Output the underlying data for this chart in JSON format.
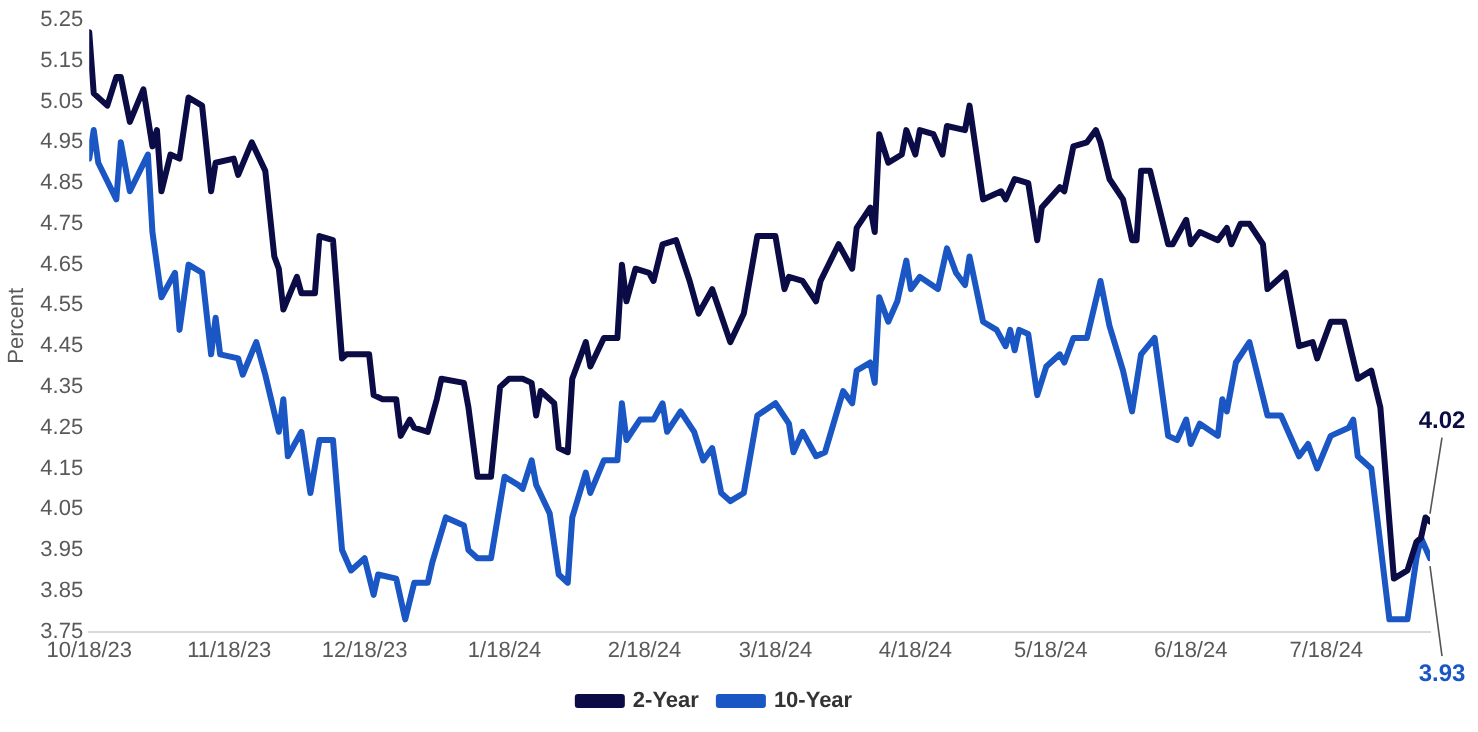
{
  "chart_data": {
    "type": "line",
    "ylabel": "Percent",
    "xlim": [
      "2023-10-18",
      "2024-08-10"
    ],
    "ylim": [
      3.75,
      5.25
    ],
    "xticks": [
      {
        "value": "2023-10-18",
        "label": "10/18/23"
      },
      {
        "value": "2023-11-18",
        "label": "11/18/23"
      },
      {
        "value": "2023-12-18",
        "label": "12/18/23"
      },
      {
        "value": "2024-01-18",
        "label": "1/18/24"
      },
      {
        "value": "2024-02-18",
        "label": "2/18/24"
      },
      {
        "value": "2024-03-18",
        "label": "3/18/24"
      },
      {
        "value": "2024-04-18",
        "label": "4/18/24"
      },
      {
        "value": "2024-05-18",
        "label": "5/18/24"
      },
      {
        "value": "2024-06-18",
        "label": "6/18/24"
      },
      {
        "value": "2024-07-18",
        "label": "7/18/24"
      }
    ],
    "yticks": [
      {
        "value": 3.75,
        "label": "3.75"
      },
      {
        "value": 3.85,
        "label": "3.85"
      },
      {
        "value": 3.95,
        "label": "3.95"
      },
      {
        "value": 4.05,
        "label": "4.05"
      },
      {
        "value": 4.15,
        "label": "4.15"
      },
      {
        "value": 4.25,
        "label": "4.25"
      },
      {
        "value": 4.35,
        "label": "4.35"
      },
      {
        "value": 4.45,
        "label": "4.45"
      },
      {
        "value": 4.55,
        "label": "4.55"
      },
      {
        "value": 4.65,
        "label": "4.65"
      },
      {
        "value": 4.75,
        "label": "4.75"
      },
      {
        "value": 4.85,
        "label": "4.85"
      },
      {
        "value": 4.95,
        "label": "4.95"
      },
      {
        "value": 5.05,
        "label": "5.05"
      },
      {
        "value": 5.15,
        "label": "5.15"
      },
      {
        "value": 5.25,
        "label": "5.25"
      }
    ],
    "grid": false,
    "legend": "bottom",
    "marker": "none",
    "line_style": "solid",
    "series": [
      {
        "name": "2-Year",
        "color": "#0b0b45",
        "x": [
          "2023-10-18",
          "2023-10-19",
          "2023-10-22",
          "2023-10-24",
          "2023-10-25",
          "2023-10-27",
          "2023-10-30",
          "2023-11-01",
          "2023-11-02",
          "2023-11-03",
          "2023-11-05",
          "2023-11-07",
          "2023-11-09",
          "2023-11-12",
          "2023-11-14",
          "2023-11-15",
          "2023-11-19",
          "2023-11-20",
          "2023-11-23",
          "2023-11-26",
          "2023-11-28",
          "2023-11-29",
          "2023-11-30",
          "2023-12-03",
          "2023-12-04",
          "2023-12-07",
          "2023-12-08",
          "2023-12-11",
          "2023-12-13",
          "2023-12-14",
          "2023-12-19",
          "2023-12-20",
          "2023-12-22",
          "2023-12-25",
          "2023-12-26",
          "2023-12-28",
          "2023-12-29",
          "2024-01-01",
          "2024-01-03",
          "2024-01-04",
          "2024-01-09",
          "2024-01-10",
          "2024-01-12",
          "2024-01-15",
          "2024-01-17",
          "2024-01-19",
          "2024-01-22",
          "2024-01-24",
          "2024-01-25",
          "2024-01-26",
          "2024-01-29",
          "2024-01-30",
          "2024-02-01",
          "2024-02-02",
          "2024-02-05",
          "2024-02-06",
          "2024-02-09",
          "2024-02-12",
          "2024-02-13",
          "2024-02-14",
          "2024-02-16",
          "2024-02-19",
          "2024-02-20",
          "2024-02-22",
          "2024-02-25",
          "2024-02-28",
          "2024-03-01",
          "2024-03-04",
          "2024-03-08",
          "2024-03-11",
          "2024-03-14",
          "2024-03-18",
          "2024-03-20",
          "2024-03-21",
          "2024-03-24",
          "2024-03-27",
          "2024-03-28",
          "2024-04-01",
          "2024-04-04",
          "2024-04-05",
          "2024-04-08",
          "2024-04-09",
          "2024-04-10",
          "2024-04-12",
          "2024-04-15",
          "2024-04-16",
          "2024-04-18",
          "2024-04-19",
          "2024-04-22",
          "2024-04-24",
          "2024-04-25",
          "2024-04-29",
          "2024-04-30",
          "2024-05-03",
          "2024-05-07",
          "2024-05-08",
          "2024-05-10",
          "2024-05-13",
          "2024-05-15",
          "2024-05-16",
          "2024-05-20",
          "2024-05-21",
          "2024-05-23",
          "2024-05-26",
          "2024-05-28",
          "2024-05-29",
          "2024-05-31",
          "2024-06-03",
          "2024-06-05",
          "2024-06-06",
          "2024-06-07",
          "2024-06-09",
          "2024-06-13",
          "2024-06-14",
          "2024-06-17",
          "2024-06-18",
          "2024-06-20",
          "2024-06-24",
          "2024-06-26",
          "2024-06-27",
          "2024-06-29",
          "2024-07-01",
          "2024-07-04",
          "2024-07-05",
          "2024-07-09",
          "2024-07-12",
          "2024-07-15",
          "2024-07-16",
          "2024-07-19",
          "2024-07-22",
          "2024-07-25",
          "2024-07-28",
          "2024-07-30",
          "2024-08-02",
          "2024-08-05",
          "2024-08-07",
          "2024-08-08",
          "2024-08-09",
          "2024-08-10"
        ],
        "values": [
          5.22,
          5.07,
          5.04,
          5.11,
          5.11,
          5.0,
          5.08,
          4.94,
          4.98,
          4.83,
          4.92,
          4.91,
          5.06,
          5.04,
          4.83,
          4.9,
          4.91,
          4.87,
          4.95,
          4.88,
          4.67,
          4.64,
          4.54,
          4.62,
          4.58,
          4.58,
          4.72,
          4.71,
          4.42,
          4.43,
          4.43,
          4.33,
          4.32,
          4.32,
          4.23,
          4.27,
          4.25,
          4.24,
          4.32,
          4.37,
          4.36,
          4.3,
          4.13,
          4.13,
          4.35,
          4.37,
          4.37,
          4.36,
          4.28,
          4.34,
          4.31,
          4.2,
          4.19,
          4.37,
          4.46,
          4.4,
          4.47,
          4.47,
          4.65,
          4.56,
          4.64,
          4.63,
          4.61,
          4.7,
          4.71,
          4.61,
          4.53,
          4.59,
          4.46,
          4.53,
          4.72,
          4.72,
          4.59,
          4.62,
          4.61,
          4.56,
          4.61,
          4.7,
          4.64,
          4.74,
          4.79,
          4.73,
          4.97,
          4.9,
          4.92,
          4.98,
          4.92,
          4.98,
          4.97,
          4.92,
          4.99,
          4.98,
          5.04,
          4.81,
          4.83,
          4.81,
          4.86,
          4.85,
          4.71,
          4.79,
          4.84,
          4.83,
          4.94,
          4.95,
          4.98,
          4.95,
          4.86,
          4.81,
          4.71,
          4.71,
          4.88,
          4.88,
          4.7,
          4.7,
          4.76,
          4.7,
          4.73,
          4.71,
          4.74,
          4.7,
          4.75,
          4.75,
          4.7,
          4.59,
          4.63,
          4.45,
          4.46,
          4.42,
          4.51,
          4.51,
          4.37,
          4.39,
          4.3,
          3.88,
          3.9,
          3.97,
          3.98,
          4.03,
          4.02
        ]
      },
      {
        "name": "10-Year",
        "color": "#1a56c4",
        "x": [
          "2023-10-18",
          "2023-10-19",
          "2023-10-20",
          "2023-10-24",
          "2023-10-25",
          "2023-10-27",
          "2023-10-31",
          "2023-11-01",
          "2023-11-03",
          "2023-11-06",
          "2023-11-07",
          "2023-11-09",
          "2023-11-12",
          "2023-11-14",
          "2023-11-15",
          "2023-11-16",
          "2023-11-20",
          "2023-11-21",
          "2023-11-24",
          "2023-11-26",
          "2023-11-29",
          "2023-11-30",
          "2023-12-01",
          "2023-12-04",
          "2023-12-06",
          "2023-12-08",
          "2023-12-11",
          "2023-12-13",
          "2023-12-15",
          "2023-12-18",
          "2023-12-20",
          "2023-12-21",
          "2023-12-25",
          "2023-12-27",
          "2023-12-29",
          "2024-01-01",
          "2024-01-02",
          "2024-01-05",
          "2024-01-09",
          "2024-01-10",
          "2024-01-12",
          "2024-01-15",
          "2024-01-18",
          "2024-01-21",
          "2024-01-22",
          "2024-01-24",
          "2024-01-25",
          "2024-01-28",
          "2024-01-30",
          "2024-02-01",
          "2024-02-02",
          "2024-02-05",
          "2024-02-06",
          "2024-02-09",
          "2024-02-12",
          "2024-02-13",
          "2024-02-14",
          "2024-02-17",
          "2024-02-20",
          "2024-02-22",
          "2024-02-23",
          "2024-02-26",
          "2024-02-29",
          "2024-03-02",
          "2024-03-04",
          "2024-03-06",
          "2024-03-08",
          "2024-03-11",
          "2024-03-14",
          "2024-03-18",
          "2024-03-21",
          "2024-03-22",
          "2024-03-24",
          "2024-03-27",
          "2024-03-29",
          "2024-04-02",
          "2024-04-04",
          "2024-04-05",
          "2024-04-08",
          "2024-04-09",
          "2024-04-10",
          "2024-04-12",
          "2024-04-14",
          "2024-04-16",
          "2024-04-17",
          "2024-04-19",
          "2024-04-23",
          "2024-04-25",
          "2024-04-27",
          "2024-04-29",
          "2024-04-30",
          "2024-05-03",
          "2024-05-06",
          "2024-05-08",
          "2024-05-09",
          "2024-05-10",
          "2024-05-11",
          "2024-05-13",
          "2024-05-15",
          "2024-05-17",
          "2024-05-20",
          "2024-05-21",
          "2024-05-23",
          "2024-05-26",
          "2024-05-29",
          "2024-05-31",
          "2024-06-03",
          "2024-06-05",
          "2024-06-07",
          "2024-06-10",
          "2024-06-13",
          "2024-06-15",
          "2024-06-17",
          "2024-06-18",
          "2024-06-20",
          "2024-06-24",
          "2024-06-25",
          "2024-06-26",
          "2024-06-28",
          "2024-07-01",
          "2024-07-03",
          "2024-07-05",
          "2024-07-08",
          "2024-07-12",
          "2024-07-14",
          "2024-07-16",
          "2024-07-19",
          "2024-07-23",
          "2024-07-24",
          "2024-07-25",
          "2024-07-28",
          "2024-08-01",
          "2024-08-05",
          "2024-08-07",
          "2024-08-08",
          "2024-08-10"
        ],
        "values": [
          4.91,
          4.98,
          4.9,
          4.81,
          4.95,
          4.83,
          4.92,
          4.73,
          4.57,
          4.63,
          4.49,
          4.65,
          4.63,
          4.43,
          4.52,
          4.43,
          4.42,
          4.38,
          4.46,
          4.38,
          4.24,
          4.32,
          4.18,
          4.24,
          4.09,
          4.22,
          4.22,
          3.95,
          3.9,
          3.93,
          3.84,
          3.89,
          3.88,
          3.78,
          3.87,
          3.87,
          3.92,
          4.03,
          4.01,
          3.95,
          3.93,
          3.93,
          4.13,
          4.11,
          4.1,
          4.17,
          4.11,
          4.04,
          3.89,
          3.87,
          4.03,
          4.14,
          4.09,
          4.17,
          4.17,
          4.31,
          4.22,
          4.27,
          4.27,
          4.31,
          4.24,
          4.29,
          4.24,
          4.17,
          4.2,
          4.09,
          4.07,
          4.09,
          4.28,
          4.31,
          4.26,
          4.19,
          4.24,
          4.18,
          4.19,
          4.34,
          4.31,
          4.39,
          4.41,
          4.36,
          4.57,
          4.51,
          4.56,
          4.66,
          4.59,
          4.62,
          4.59,
          4.69,
          4.63,
          4.6,
          4.67,
          4.51,
          4.49,
          4.45,
          4.49,
          4.44,
          4.49,
          4.48,
          4.33,
          4.4,
          4.43,
          4.41,
          4.47,
          4.47,
          4.61,
          4.5,
          4.39,
          4.29,
          4.43,
          4.47,
          4.23,
          4.22,
          4.27,
          4.21,
          4.26,
          4.23,
          4.32,
          4.29,
          4.41,
          4.46,
          4.37,
          4.28,
          4.28,
          4.18,
          4.21,
          4.15,
          4.23,
          4.25,
          4.27,
          4.18,
          4.15,
          3.78,
          3.78,
          3.93,
          3.98,
          3.93
        ]
      }
    ],
    "annotations": [
      {
        "text": "4.02",
        "x": "2024-08-10",
        "y": 4.02
      },
      {
        "text": "3.93",
        "x": "2024-08-10",
        "y": 3.93
      }
    ]
  }
}
